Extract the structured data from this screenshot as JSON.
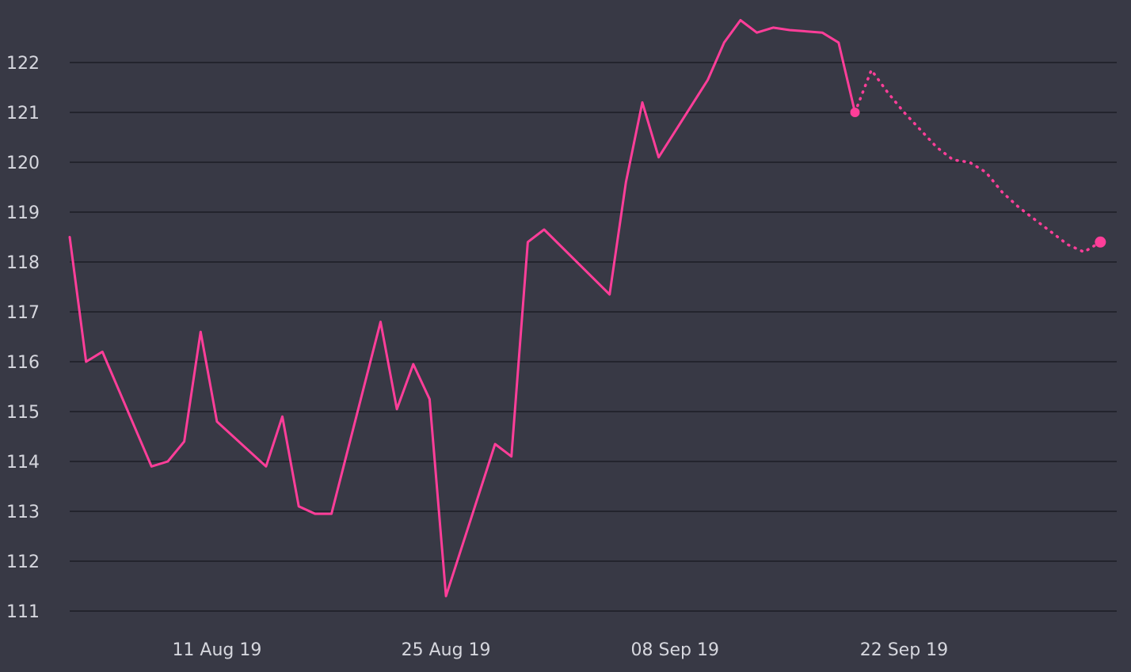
{
  "colors": {
    "background": "#383945",
    "grid": "#23242d",
    "text": "#d6d7de",
    "series": "#ff3e99"
  },
  "chart_data": {
    "type": "line",
    "title": "",
    "xlabel": "",
    "ylabel": "",
    "ylim": [
      111,
      123
    ],
    "yticks": [
      111,
      112,
      113,
      114,
      115,
      116,
      117,
      118,
      119,
      120,
      121,
      122
    ],
    "xlim": [
      "2019-08-02",
      "2019-10-05"
    ],
    "xticks": [
      {
        "date": "2019-08-11",
        "label": "11 Aug 19"
      },
      {
        "date": "2019-08-25",
        "label": "25 Aug 19"
      },
      {
        "date": "2019-09-08",
        "label": "08 Sep 19"
      },
      {
        "date": "2019-09-22",
        "label": "22 Sep 19"
      }
    ],
    "grid": true,
    "series": [
      {
        "style": "solid",
        "x": [
          "2019-08-02",
          "2019-08-03",
          "2019-08-04",
          "2019-08-07",
          "2019-08-08",
          "2019-08-09",
          "2019-08-10",
          "2019-08-11",
          "2019-08-14",
          "2019-08-15",
          "2019-08-16",
          "2019-08-17",
          "2019-08-18",
          "2019-08-21",
          "2019-08-22",
          "2019-08-23",
          "2019-08-24",
          "2019-08-25",
          "2019-08-28",
          "2019-08-29",
          "2019-08-30",
          "2019-08-31",
          "2019-09-04",
          "2019-09-05",
          "2019-09-06",
          "2019-09-07",
          "2019-09-10",
          "2019-09-11",
          "2019-09-12",
          "2019-09-13",
          "2019-09-14",
          "2019-09-15",
          "2019-09-17",
          "2019-09-18",
          "2019-09-19"
        ],
        "values": [
          118.5,
          116.0,
          116.2,
          113.9,
          114.0,
          114.4,
          116.6,
          114.8,
          113.9,
          114.9,
          113.1,
          112.95,
          112.95,
          116.8,
          115.05,
          115.95,
          115.25,
          111.3,
          114.35,
          114.1,
          118.4,
          118.65,
          117.35,
          119.6,
          121.2,
          120.1,
          121.65,
          122.4,
          122.85,
          122.6,
          122.7,
          122.65,
          122.6,
          122.4,
          121.0
        ]
      },
      {
        "style": "dotted",
        "x": [
          "2019-09-19",
          "2019-09-20",
          "2019-09-21",
          "2019-09-22",
          "2019-09-23",
          "2019-09-24",
          "2019-09-25",
          "2019-09-26",
          "2019-09-27",
          "2019-09-28",
          "2019-09-29",
          "2019-09-30",
          "2019-10-01",
          "2019-10-02",
          "2019-10-03",
          "2019-10-04"
        ],
        "values": [
          121.0,
          121.85,
          121.4,
          121.0,
          120.65,
          120.3,
          120.05,
          120.0,
          119.8,
          119.4,
          119.1,
          118.85,
          118.6,
          118.35,
          118.2,
          118.4
        ]
      }
    ]
  }
}
